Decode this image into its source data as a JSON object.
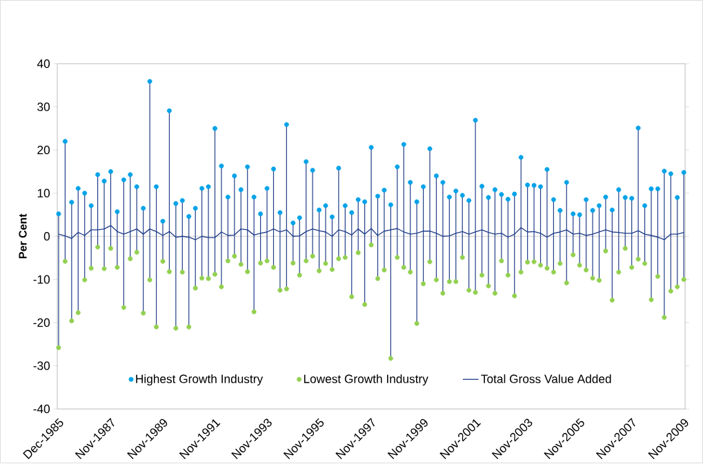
{
  "chart_data": {
    "type": "scatter",
    "ylabel": "Per Cent",
    "categories": [
      "Dec-1985",
      null,
      null,
      null,
      null,
      null,
      null,
      null,
      "Nov-1987",
      null,
      null,
      null,
      null,
      null,
      null,
      null,
      "Nov-1989",
      null,
      null,
      null,
      null,
      null,
      null,
      null,
      "Nov-1991",
      null,
      null,
      null,
      null,
      null,
      null,
      null,
      "Nov-1993",
      null,
      null,
      null,
      null,
      null,
      null,
      null,
      "Nov-1995",
      null,
      null,
      null,
      null,
      null,
      null,
      null,
      "Nov-1997",
      null,
      null,
      null,
      null,
      null,
      null,
      null,
      "Nov-1999",
      null,
      null,
      null,
      null,
      null,
      null,
      null,
      "Nov-2001",
      null,
      null,
      null,
      null,
      null,
      null,
      null,
      "Nov-2003",
      null,
      null,
      null,
      null,
      null,
      null,
      null,
      "Nov-2005",
      null,
      null,
      null,
      null,
      null,
      null,
      null,
      "Nov-2007",
      null,
      null,
      null,
      null,
      null,
      null,
      null,
      "Nov-2009"
    ],
    "ylim": [
      -40,
      40
    ],
    "yticks": [
      -40,
      -30,
      -20,
      -10,
      0,
      10,
      20,
      30,
      40
    ],
    "legend": "bottom",
    "series": [
      {
        "name": "Highest Growth Industry",
        "marker": "circle",
        "color": "#00a2e8",
        "values": [
          5.2,
          22.0,
          7.9,
          11.1,
          10.0,
          7.1,
          14.3,
          12.8,
          15.0,
          5.7,
          13.1,
          14.3,
          11.5,
          6.5,
          35.9,
          11.5,
          3.5,
          29.1,
          7.6,
          8.3,
          4.6,
          6.5,
          11.1,
          11.5,
          25.0,
          16.3,
          9.1,
          14.0,
          10.8,
          16.1,
          9.1,
          5.2,
          11.1,
          15.6,
          5.5,
          25.9,
          3.1,
          4.3,
          17.3,
          15.3,
          6.1,
          7.1,
          4.5,
          15.8,
          7.1,
          5.5,
          8.5,
          8.0,
          20.6,
          9.3,
          10.7,
          7.3,
          16.1,
          21.3,
          12.5,
          8.0,
          11.5,
          20.3,
          14.0,
          12.5,
          9.1,
          10.5,
          9.5,
          8.3,
          26.9,
          11.6,
          9.0,
          10.8,
          9.7,
          8.6,
          9.8,
          18.3,
          11.9,
          11.8,
          11.5,
          15.5,
          8.5,
          6.0,
          12.5,
          5.2,
          5.0,
          8.5,
          6.0,
          7.1,
          9.1,
          6.1,
          10.8,
          9.0,
          8.8,
          25.1,
          7.1,
          11.0,
          11.0,
          15.1,
          14.5,
          9.0,
          14.8
        ]
      },
      {
        "name": "Lowest Growth Industry",
        "marker": "circle",
        "color": "#92d050",
        "values": [
          -25.8,
          -5.8,
          -19.6,
          -17.7,
          -10.1,
          -7.4,
          -2.5,
          -7.5,
          -2.8,
          -7.2,
          -16.5,
          -5.2,
          -3.7,
          -17.8,
          -10.1,
          -21.0,
          -5.8,
          -8.2,
          -21.3,
          -8.3,
          -21.0,
          -12.0,
          -9.7,
          -9.8,
          -8.8,
          -11.7,
          -5.7,
          -4.6,
          -6.5,
          -8.2,
          -17.5,
          -6.2,
          -5.7,
          -7.2,
          -12.5,
          -12.2,
          -6.2,
          -9.0,
          -5.7,
          -4.6,
          -8.0,
          -6.3,
          -7.7,
          -5.2,
          -4.9,
          -14.0,
          -3.8,
          -15.8,
          -2.0,
          -9.8,
          -7.8,
          -28.3,
          -4.9,
          -7.2,
          -8.3,
          -20.2,
          -11.0,
          -5.9,
          -10.1,
          -13.2,
          -10.5,
          -10.5,
          -4.9,
          -12.5,
          -13.0,
          -9.0,
          -11.5,
          -13.2,
          -5.7,
          -9.0,
          -13.8,
          -8.3,
          -6.0,
          -5.9,
          -6.7,
          -7.4,
          -8.3,
          -6.3,
          -10.8,
          -4.3,
          -6.7,
          -7.8,
          -9.7,
          -10.2,
          -3.4,
          -14.8,
          -8.3,
          -2.8,
          -7.2,
          -5.3,
          -6.3,
          -14.7,
          -9.3,
          -18.8,
          -12.7,
          -11.7,
          -10.0
        ]
      },
      {
        "name": "Total Gross Value Added",
        "type": "line",
        "marker": "none",
        "color": "#1f3c88",
        "values": [
          0.5,
          0.1,
          -0.5,
          0.9,
          0.2,
          1.5,
          1.5,
          1.7,
          2.5,
          1.1,
          0.5,
          1.1,
          1.7,
          0.5,
          1.7,
          1.1,
          0.2,
          1.1,
          -0.2,
          0.0,
          -0.2,
          -0.8,
          0.0,
          -0.3,
          -0.3,
          1.0,
          0.2,
          0.3,
          1.7,
          1.5,
          0.3,
          0.7,
          1.0,
          1.7,
          1.0,
          1.5,
          0.0,
          0.1,
          1.1,
          1.7,
          1.3,
          1.0,
          0.0,
          1.5,
          1.1,
          0.3,
          1.7,
          0.5,
          1.8,
          0.2,
          1.2,
          1.5,
          1.8,
          1.0,
          0.5,
          0.7,
          1.2,
          1.2,
          0.7,
          0.0,
          0.1,
          0.7,
          1.1,
          0.5,
          1.0,
          1.5,
          0.9,
          0.5,
          0.7,
          -0.2,
          0.5,
          2.0,
          1.0,
          1.1,
          0.7,
          -0.2,
          0.7,
          1.0,
          1.5,
          0.5,
          0.7,
          0.2,
          0.5,
          1.0,
          1.5,
          1.0,
          0.9,
          0.7,
          0.7,
          1.3,
          0.5,
          0.2,
          -0.2,
          -0.8,
          0.5,
          0.5,
          0.9
        ]
      }
    ]
  }
}
